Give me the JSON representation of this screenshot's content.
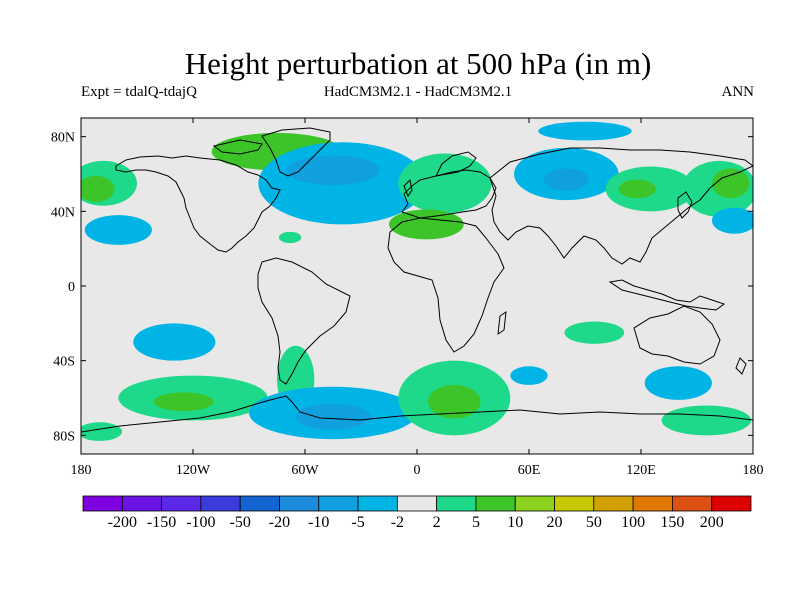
{
  "title": "Height perturbation at 500 hPa (in m)",
  "subtitle_left": "Expt = tdalQ-tdajQ",
  "subtitle_center": "HadCM3M2.1 - HadCM3M2.1",
  "subtitle_right": "ANN",
  "map": {
    "lon_ticks": [
      {
        "lon": -180,
        "label": "180"
      },
      {
        "lon": -120,
        "label": "120W"
      },
      {
        "lon": -60,
        "label": "60W"
      },
      {
        "lon": 0,
        "label": "0"
      },
      {
        "lon": 60,
        "label": "60E"
      },
      {
        "lon": 120,
        "label": "120E"
      },
      {
        "lon": 180,
        "label": "180"
      }
    ],
    "lat_ticks": [
      {
        "lat": 80,
        "label": "80N"
      },
      {
        "lat": 40,
        "label": "40N"
      },
      {
        "lat": 0,
        "label": "0"
      },
      {
        "lat": -40,
        "label": "40S"
      },
      {
        "lat": -80,
        "label": "80S"
      }
    ],
    "background_color": "#e8e8e8",
    "coastline_color": "#000000",
    "anomalies": [
      {
        "name": "greenland-north-atlantic",
        "lon": -75,
        "lat": 72,
        "rx": 35,
        "ry": 10,
        "color": "#3cc428"
      },
      {
        "name": "north-atlantic-low",
        "lon": -40,
        "lat": 55,
        "rx": 45,
        "ry": 22,
        "color": "#00b4e6"
      },
      {
        "name": "north-atlantic-core",
        "lon": -45,
        "lat": 62,
        "rx": 25,
        "ry": 8,
        "color": "#10a0e0"
      },
      {
        "name": "north-pacific-east",
        "lon": -168,
        "lat": 55,
        "rx": 18,
        "ry": 12,
        "color": "#1ed98a"
      },
      {
        "name": "north-pacific-east-core",
        "lon": -172,
        "lat": 52,
        "rx": 10,
        "ry": 7,
        "color": "#3cc428"
      },
      {
        "name": "subtropical-pacific",
        "lon": -160,
        "lat": 30,
        "rx": 18,
        "ry": 8,
        "color": "#00b4e6"
      },
      {
        "name": "mexico-patch",
        "lon": -68,
        "lat": 26,
        "rx": 6,
        "ry": 3,
        "color": "#1ed98a"
      },
      {
        "name": "eastern-europe-high",
        "lon": 15,
        "lat": 55,
        "rx": 25,
        "ry": 16,
        "color": "#1ed98a"
      },
      {
        "name": "mediterranean-high",
        "lon": 5,
        "lat": 33,
        "rx": 20,
        "ry": 8,
        "color": "#3cc428"
      },
      {
        "name": "siberia-low",
        "lon": 80,
        "lat": 60,
        "rx": 28,
        "ry": 14,
        "color": "#00b4e6"
      },
      {
        "name": "siberia-core",
        "lon": 80,
        "lat": 57,
        "rx": 12,
        "ry": 6,
        "color": "#10a0e0"
      },
      {
        "name": "east-asia-high",
        "lon": 125,
        "lat": 52,
        "rx": 24,
        "ry": 12,
        "color": "#1ed98a"
      },
      {
        "name": "east-asia-core",
        "lon": 118,
        "lat": 52,
        "rx": 10,
        "ry": 5,
        "color": "#3cc428"
      },
      {
        "name": "north-pacific-west",
        "lon": 162,
        "lat": 52,
        "rx": 20,
        "ry": 15,
        "color": "#1ed98a"
      },
      {
        "name": "north-pacific-west-core",
        "lon": 168,
        "lat": 55,
        "rx": 10,
        "ry": 8,
        "color": "#3cc428"
      },
      {
        "name": "west-pacific-blue",
        "lon": 170,
        "lat": 35,
        "rx": 12,
        "ry": 7,
        "color": "#00b4e6"
      },
      {
        "name": "arctic-blue",
        "lon": 90,
        "lat": 83,
        "rx": 25,
        "ry": 5,
        "color": "#00b4e6"
      },
      {
        "name": "south-pacific-blue",
        "lon": -130,
        "lat": -30,
        "rx": 22,
        "ry": 10,
        "color": "#00b4e6"
      },
      {
        "name": "south-pacific-green",
        "lon": -120,
        "lat": -60,
        "rx": 40,
        "ry": 12,
        "color": "#1ed98a"
      },
      {
        "name": "south-pacific-green-core",
        "lon": -125,
        "lat": -62,
        "rx": 16,
        "ry": 5,
        "color": "#3cc428"
      },
      {
        "name": "south-america-green",
        "lon": -65,
        "lat": -50,
        "rx": 10,
        "ry": 18,
        "color": "#1ed98a"
      },
      {
        "name": "south-atlantic-low",
        "lon": -45,
        "lat": -68,
        "rx": 45,
        "ry": 14,
        "color": "#00b4e6"
      },
      {
        "name": "south-atlantic-core",
        "lon": -45,
        "lat": -70,
        "rx": 20,
        "ry": 7,
        "color": "#10a0e0"
      },
      {
        "name": "south-atlantic-green",
        "lon": 20,
        "lat": -60,
        "rx": 30,
        "ry": 20,
        "color": "#1ed98a"
      },
      {
        "name": "south-atlantic-green-core",
        "lon": 20,
        "lat": -62,
        "rx": 14,
        "ry": 9,
        "color": "#3cc428"
      },
      {
        "name": "indian-ocean-green",
        "lon": 95,
        "lat": -25,
        "rx": 16,
        "ry": 6,
        "color": "#1ed98a"
      },
      {
        "name": "indian-ocean-blue",
        "lon": 60,
        "lat": -48,
        "rx": 10,
        "ry": 5,
        "color": "#00b4e6"
      },
      {
        "name": "australia-blue",
        "lon": 140,
        "lat": -52,
        "rx": 18,
        "ry": 9,
        "color": "#00b4e6"
      },
      {
        "name": "antarctic-pacific-green",
        "lon": 155,
        "lat": -72,
        "rx": 24,
        "ry": 8,
        "color": "#1ed98a"
      },
      {
        "name": "antarctic-pacific-west",
        "lon": -170,
        "lat": -78,
        "rx": 12,
        "ry": 5,
        "color": "#1ed98a"
      }
    ]
  },
  "colorbar": {
    "colors": [
      "#7d00e0",
      "#6a14e4",
      "#5a28e6",
      "#3c3cdc",
      "#1464d2",
      "#1e8cdc",
      "#10a0e0",
      "#00b4e6",
      "#e8e8e8",
      "#1ed98a",
      "#3cc428",
      "#8cd21e",
      "#c8c800",
      "#d2a000",
      "#e07800",
      "#dc5014",
      "#dc0000"
    ],
    "labels": [
      "-200",
      "-150",
      "-100",
      "-50",
      "-20",
      "-10",
      "-5",
      "-2",
      "2",
      "5",
      "10",
      "20",
      "50",
      "100",
      "150",
      "200"
    ]
  }
}
